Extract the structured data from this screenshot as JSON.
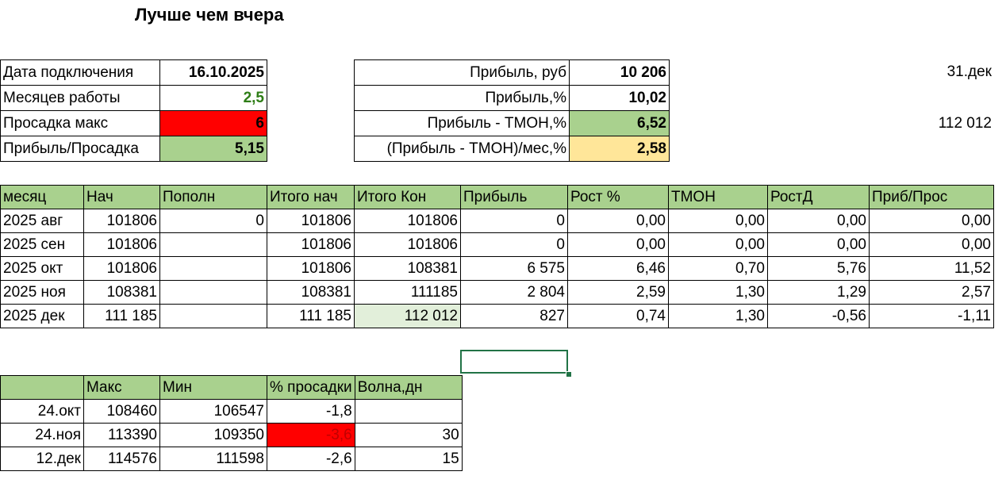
{
  "title": "Лучше чем вчера",
  "info_left": [
    {
      "label": "Дата подключения",
      "value": "16.10.2025"
    },
    {
      "label": "Месяцев работы",
      "value": "2,5"
    },
    {
      "label": "Просадка макс",
      "value": "6"
    },
    {
      "label": "Прибыль/Просадка",
      "value": "5,15"
    }
  ],
  "info_mid": [
    {
      "label": "Прибыль, руб",
      "value": "10 206"
    },
    {
      "label": "Прибыль,%",
      "value": "10,02"
    },
    {
      "label": "Прибыль - TMOH,%",
      "value": "6,52"
    },
    {
      "label": "(Прибыль - TMOH)/мес,%",
      "value": "2,58"
    }
  ],
  "side_date": "31.дек",
  "side_value": "112 012",
  "colors": {
    "header_green": "#a9d18e",
    "red": "#ff0000",
    "yellow": "#ffe699",
    "pale_green": "#e2efda",
    "selection": "#217346"
  },
  "monthly": {
    "headers": [
      "месяц",
      "Нач",
      "Пополн",
      "Итого нач",
      "Итого Кон",
      "Прибыль",
      "Рост %",
      "TMOH",
      "РостД",
      "Приб/Прос"
    ],
    "rows": [
      [
        "2025 авг",
        "101806",
        "0",
        "101806",
        "101806",
        "0",
        "0,00",
        "0,00",
        "0,00",
        "0,00"
      ],
      [
        "2025 сен",
        "101806",
        "",
        "101806",
        "101806",
        "0",
        "0,00",
        "0,00",
        "0,00",
        "0,00"
      ],
      [
        "2025 окт",
        "101806",
        "",
        "101806",
        "108381",
        "6 575",
        "6,46",
        "0,70",
        "5,76",
        "11,52"
      ],
      [
        "2025 ноя",
        "108381",
        "",
        "108381",
        "111185",
        "2 804",
        "2,59",
        "1,30",
        "1,29",
        "2,57"
      ],
      [
        "2025 дек",
        "111 185",
        "",
        "111 185",
        "112 012",
        "827",
        "0,74",
        "1,30",
        "-0,56",
        "-1,11"
      ]
    ]
  },
  "drawdown": {
    "headers": [
      "",
      "Макс",
      "Мин",
      "% просадки",
      "Волна,дн"
    ],
    "rows": [
      [
        "24.окт",
        "108460",
        "106547",
        "-1,8",
        ""
      ],
      [
        "24.ноя",
        "113390",
        "109350",
        "-3,6",
        "30"
      ],
      [
        "12.дек",
        "114576",
        "111598",
        "-2,6",
        "15"
      ]
    ]
  }
}
